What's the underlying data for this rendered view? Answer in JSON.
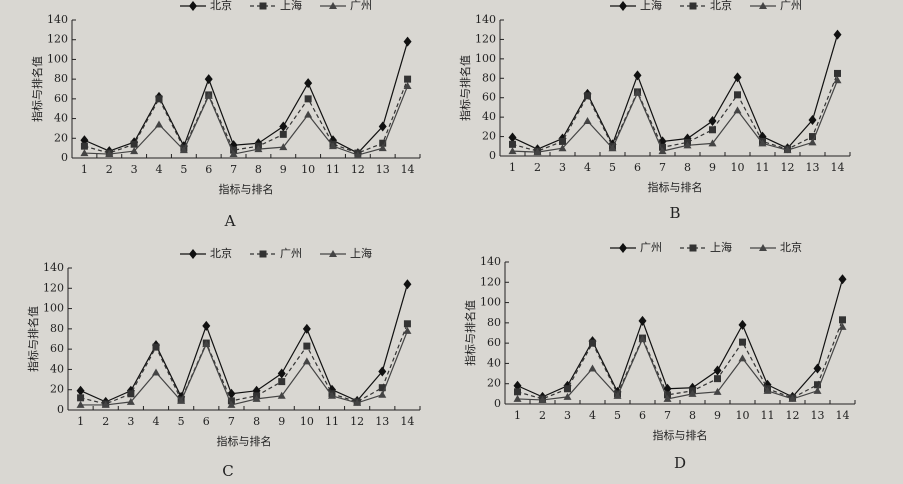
{
  "chart_data": [
    {
      "type": "line",
      "caption": "A",
      "x_label": "指标与排名",
      "y_label": "指标与排名值",
      "categories": [
        "1",
        "2",
        "3",
        "4",
        "5",
        "6",
        "7",
        "8",
        "9",
        "10",
        "11",
        "12",
        "13",
        "14"
      ],
      "ylim": [
        0,
        140
      ],
      "yticks": [
        0,
        20,
        40,
        60,
        80,
        100,
        120,
        140
      ],
      "series": [
        {
          "name": "北京",
          "color": "#111111",
          "marker": "diamond",
          "line_style": "solid",
          "values": [
            18,
            7,
            16,
            62,
            12,
            80,
            13,
            15,
            32,
            76,
            18,
            5,
            32,
            118
          ]
        },
        {
          "name": "上海",
          "color": "#333333",
          "marker": "square",
          "line_style": "dashed",
          "values": [
            12,
            5,
            14,
            60,
            10,
            64,
            8,
            12,
            24,
            60,
            14,
            5,
            15,
            80
          ]
        },
        {
          "name": "广州",
          "color": "#444444",
          "marker": "triangle",
          "line_style": "solid",
          "values": [
            5,
            4,
            7,
            34,
            8,
            63,
            4,
            9,
            11,
            44,
            12,
            3,
            10,
            73
          ]
        }
      ]
    },
    {
      "type": "line",
      "caption": "B",
      "x_label": "指标与排名",
      "y_label": "指标与排名值",
      "categories": [
        "1",
        "2",
        "3",
        "4",
        "5",
        "6",
        "7",
        "8",
        "9",
        "10",
        "11",
        "12",
        "13",
        "14"
      ],
      "ylim": [
        0,
        140
      ],
      "yticks": [
        0,
        20,
        40,
        60,
        80,
        100,
        120,
        140
      ],
      "series": [
        {
          "name": "上海",
          "color": "#111111",
          "marker": "diamond",
          "line_style": "solid",
          "values": [
            19,
            7,
            18,
            64,
            12,
            83,
            15,
            18,
            36,
            81,
            20,
            8,
            37,
            125
          ]
        },
        {
          "name": "北京",
          "color": "#333333",
          "marker": "square",
          "line_style": "dashed",
          "values": [
            12,
            5,
            15,
            62,
            10,
            66,
            9,
            14,
            27,
            63,
            15,
            7,
            20,
            85
          ]
        },
        {
          "name": "广州",
          "color": "#444444",
          "marker": "triangle",
          "line_style": "solid",
          "values": [
            5,
            4,
            8,
            36,
            8,
            65,
            5,
            11,
            13,
            47,
            13,
            6,
            14,
            78
          ]
        }
      ]
    },
    {
      "type": "line",
      "caption": "C",
      "x_label": "指标与排名",
      "y_label": "指标与排名值",
      "categories": [
        "1",
        "2",
        "3",
        "4",
        "5",
        "6",
        "7",
        "8",
        "9",
        "10",
        "11",
        "12",
        "13",
        "14"
      ],
      "ylim": [
        0,
        140
      ],
      "yticks": [
        0,
        20,
        40,
        60,
        80,
        100,
        120,
        140
      ],
      "series": [
        {
          "name": "北京",
          "color": "#111111",
          "marker": "diamond",
          "line_style": "solid",
          "values": [
            19,
            8,
            19,
            64,
            13,
            83,
            16,
            19,
            36,
            80,
            20,
            9,
            38,
            124
          ]
        },
        {
          "name": "广州",
          "color": "#333333",
          "marker": "square",
          "line_style": "dashed",
          "values": [
            12,
            6,
            16,
            62,
            10,
            66,
            9,
            14,
            28,
            63,
            16,
            8,
            22,
            85
          ]
        },
        {
          "name": "上海",
          "color": "#444444",
          "marker": "triangle",
          "line_style": "solid",
          "values": [
            5,
            5,
            8,
            37,
            9,
            65,
            5,
            11,
            14,
            48,
            14,
            7,
            15,
            78
          ]
        }
      ]
    },
    {
      "type": "line",
      "caption": "D",
      "x_label": "指标与排名",
      "y_label": "指标与排名值",
      "categories": [
        "1",
        "2",
        "3",
        "4",
        "5",
        "6",
        "7",
        "8",
        "9",
        "10",
        "11",
        "12",
        "13",
        "14"
      ],
      "ylim": [
        0,
        140
      ],
      "yticks": [
        0,
        20,
        40,
        60,
        80,
        100,
        120,
        140
      ],
      "series": [
        {
          "name": "广州",
          "color": "#111111",
          "marker": "diamond",
          "line_style": "solid",
          "values": [
            18,
            7,
            18,
            62,
            12,
            82,
            15,
            16,
            33,
            78,
            19,
            7,
            35,
            123
          ]
        },
        {
          "name": "上海",
          "color": "#333333",
          "marker": "square",
          "line_style": "dashed",
          "values": [
            12,
            5,
            15,
            60,
            10,
            65,
            9,
            13,
            25,
            61,
            15,
            6,
            19,
            83
          ]
        },
        {
          "name": "北京",
          "color": "#444444",
          "marker": "triangle",
          "line_style": "solid",
          "values": [
            5,
            4,
            7,
            35,
            8,
            64,
            5,
            10,
            12,
            45,
            13,
            5,
            13,
            76
          ]
        }
      ]
    }
  ]
}
